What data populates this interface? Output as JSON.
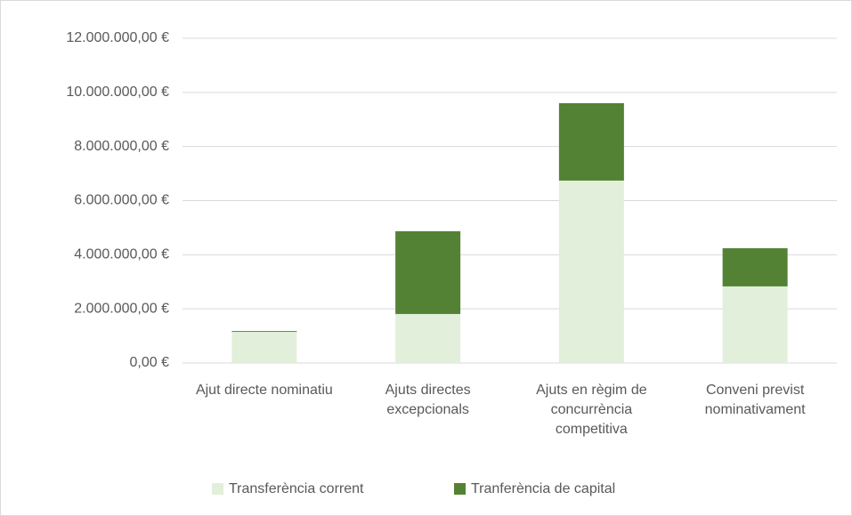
{
  "chart_data": {
    "type": "stacked_bar",
    "categories": [
      "Ajut directe nominatiu",
      "Ajuts directes excepcionals",
      "Ajuts en règim de concurrència competitiva",
      "Conveni previst nominativament"
    ],
    "series": [
      {
        "name": "Transferència corrent",
        "color": "#e2efda",
        "values": [
          1150000,
          1810000,
          6740000,
          2830000
        ]
      },
      {
        "name": "Tranferència de capital",
        "color": "#548235",
        "values": [
          30000,
          3060000,
          2860000,
          1410000
        ]
      }
    ],
    "ylim": [
      0,
      12000000
    ],
    "yticks": [
      {
        "value": 0,
        "label": "0,00 €"
      },
      {
        "value": 2000000,
        "label": "2.000.000,00 €"
      },
      {
        "value": 4000000,
        "label": "4.000.000,00 €"
      },
      {
        "value": 6000000,
        "label": "6.000.000,00 €"
      },
      {
        "value": 8000000,
        "label": "8.000.000,00 €"
      },
      {
        "value": 10000000,
        "label": "10.000.000,00 €"
      },
      {
        "value": 12000000,
        "label": "12.000.000,00 €"
      }
    ],
    "grid": true,
    "legend": "bottom"
  }
}
